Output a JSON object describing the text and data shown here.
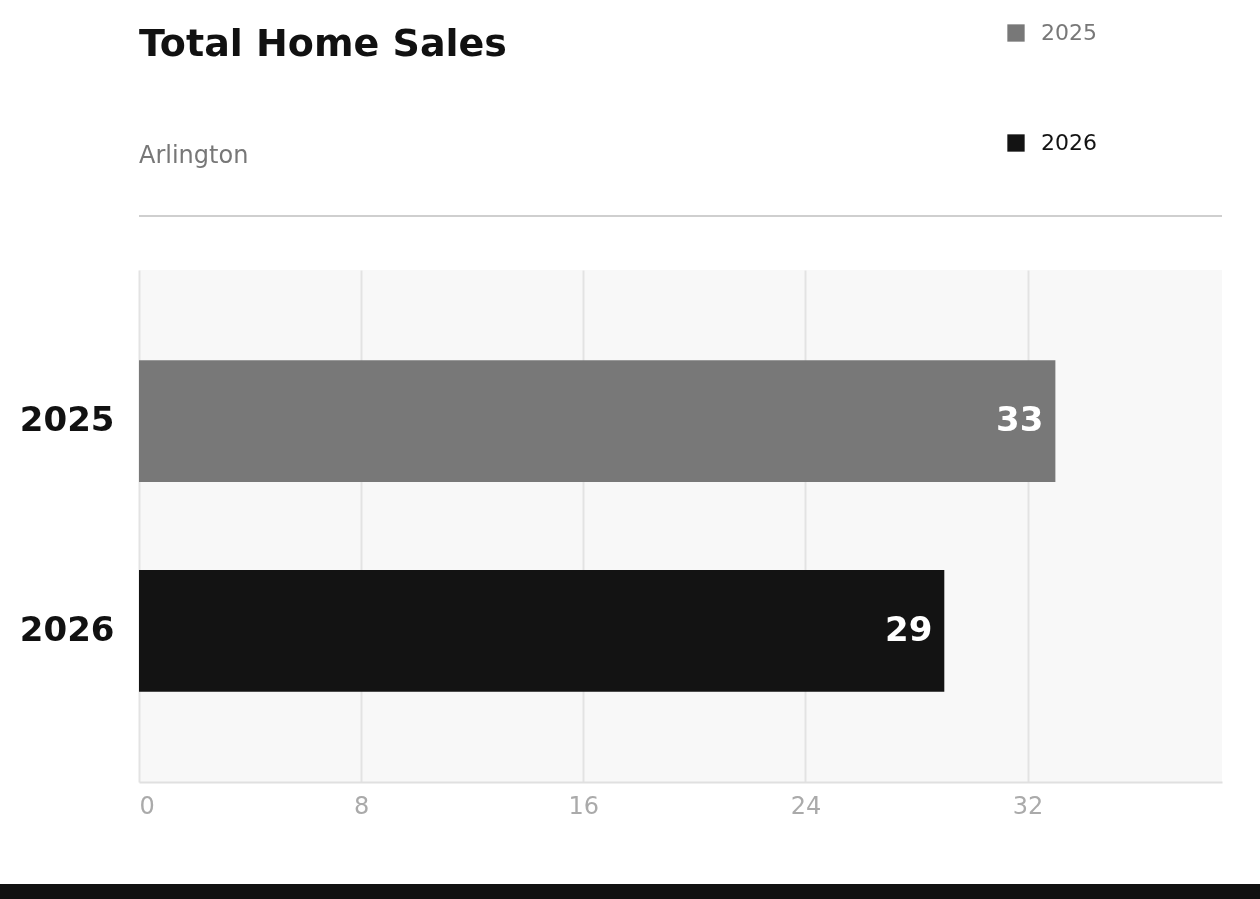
{
  "chart_data": {
    "type": "bar",
    "orientation": "horizontal",
    "title": "Total Home Sales",
    "subtitle": "Arlington",
    "categories": [
      "2025",
      "2026"
    ],
    "series": [
      {
        "name": "2025",
        "color": "#787878",
        "values": [
          33,
          null
        ]
      },
      {
        "name": "2026",
        "color": "#131313",
        "values": [
          null,
          29
        ]
      }
    ],
    "xlim": [
      0,
      39
    ],
    "xticks": [
      0,
      8,
      16,
      24,
      32
    ],
    "grid": "x",
    "legend": "top right",
    "data_labels": true
  }
}
